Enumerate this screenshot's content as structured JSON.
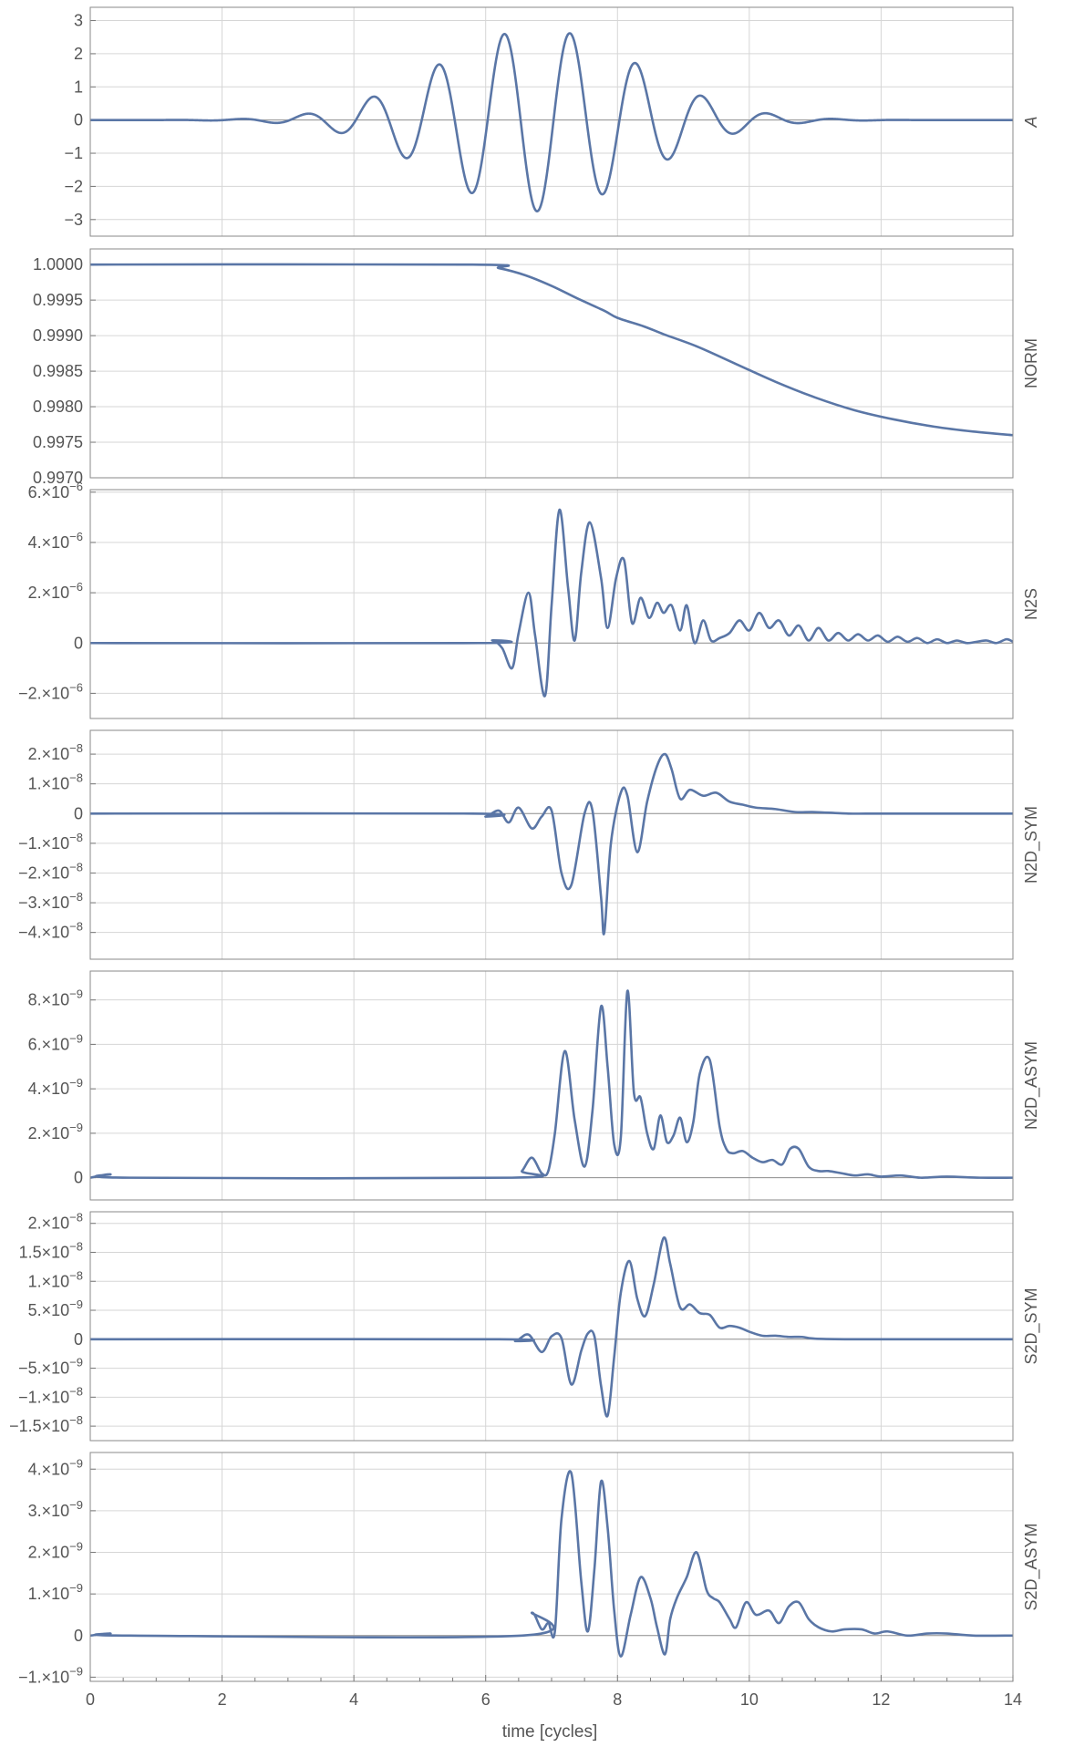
{
  "chart_data": [
    {
      "type": "line",
      "panel_label": "A",
      "x_range": [
        0,
        14
      ],
      "ylim": [
        -3.5,
        3.4
      ],
      "yticks": [
        {
          "v": 3,
          "m": "3",
          "e": ""
        },
        {
          "v": 2,
          "m": "2",
          "e": ""
        },
        {
          "v": 1,
          "m": "1",
          "e": ""
        },
        {
          "v": 0,
          "m": "0",
          "e": ""
        },
        {
          "v": -1,
          "m": "−1",
          "e": ""
        },
        {
          "v": -2,
          "m": "−2",
          "e": ""
        },
        {
          "v": -3,
          "m": "−3",
          "e": ""
        }
      ],
      "series": [
        {
          "x": [],
          "y": []
        }
      ]
    },
    {
      "type": "line",
      "panel_label": "NORM",
      "x_range": [
        0,
        14
      ],
      "ylim": [
        0.997,
        1.00022
      ],
      "yticks": [
        {
          "v": 1.0,
          "m": "1.0000",
          "e": ""
        },
        {
          "v": 0.9995,
          "m": "0.9995",
          "e": ""
        },
        {
          "v": 0.999,
          "m": "0.9990",
          "e": ""
        },
        {
          "v": 0.9985,
          "m": "0.9985",
          "e": ""
        },
        {
          "v": 0.998,
          "m": "0.9980",
          "e": ""
        },
        {
          "v": 0.9975,
          "m": "0.9975",
          "e": ""
        },
        {
          "v": 0.997,
          "m": "0.9970",
          "e": ""
        }
      ],
      "series": [
        {
          "x": [
            0,
            5.8,
            6.2,
            6.6,
            7.0,
            7.4,
            7.8,
            8.0,
            8.4,
            8.7,
            9.2,
            9.8,
            10.4,
            11.0,
            11.6,
            12.2,
            12.8,
            13.4,
            14.0
          ],
          "y": [
            1.0,
            1.0,
            0.99995,
            0.99985,
            0.9997,
            0.99952,
            0.99935,
            0.99925,
            0.99913,
            0.99902,
            0.99885,
            0.9986,
            0.99835,
            0.99813,
            0.99795,
            0.99782,
            0.99772,
            0.99765,
            0.9976
          ]
        }
      ]
    },
    {
      "type": "line",
      "panel_label": "N2S",
      "x_range": [
        0,
        14
      ],
      "ylim": [
        -3e-06,
        6.1e-06
      ],
      "yticks": [
        {
          "v": 6e-06,
          "m": "6.×10",
          "e": "−6"
        },
        {
          "v": 4e-06,
          "m": "4.×10",
          "e": "−6"
        },
        {
          "v": 2e-06,
          "m": "2.×10",
          "e": "−6"
        },
        {
          "v": 0,
          "m": "0",
          "e": ""
        },
        {
          "v": -2e-06,
          "m": "−2.×10",
          "e": "−6"
        }
      ],
      "series": [
        {
          "x": [
            0,
            5.9,
            6.1,
            6.25,
            6.4,
            6.5,
            6.65,
            6.75,
            6.9,
            7.0,
            7.12,
            7.25,
            7.35,
            7.45,
            7.58,
            7.75,
            7.85,
            7.98,
            8.1,
            8.22,
            8.35,
            8.48,
            8.6,
            8.7,
            8.82,
            8.95,
            9.05,
            9.17,
            9.3,
            9.42,
            9.55,
            9.7,
            9.85,
            10.0,
            10.15,
            10.3,
            10.45,
            10.6,
            10.75,
            10.9,
            11.05,
            11.2,
            11.35,
            11.5,
            11.65,
            11.8,
            11.95,
            12.1,
            12.25,
            12.4,
            12.55,
            12.7,
            12.85,
            13.0,
            13.15,
            13.3,
            13.45,
            13.6,
            13.75,
            13.9,
            14.0
          ],
          "y": [
            0,
            0,
            1e-07,
            -2e-07,
            -1e-06,
            4e-07,
            2e-06,
            3e-07,
            -2.1e-06,
            1.5e-06,
            5.3e-06,
            2.2e-06,
            1e-07,
            2.8e-06,
            4.8e-06,
            2.6e-06,
            6e-07,
            2.6e-06,
            3.3e-06,
            8e-07,
            1.8e-06,
            1e-06,
            1.6e-06,
            1.2e-06,
            1.5e-06,
            5e-07,
            1.5e-06,
            0.0,
            9e-07,
            1e-07,
            2e-07,
            4e-07,
            9e-07,
            5e-07,
            1.2e-06,
            6e-07,
            9e-07,
            3e-07,
            7e-07,
            1e-07,
            6e-07,
            1e-07,
            4e-07,
            1e-07,
            3.5e-07,
            1e-07,
            3e-07,
            5e-08,
            2.5e-07,
            5e-08,
            2e-07,
            0.0,
            1.5e-07,
            0.0,
            1e-07,
            0.0,
            5e-08,
            1e-07,
            0.0,
            1.5e-07,
            5e-08
          ]
        }
      ]
    },
    {
      "type": "line",
      "panel_label": "N2D_SYM",
      "x_range": [
        0,
        14
      ],
      "ylim": [
        -4.9e-08,
        2.8e-08
      ],
      "yticks": [
        {
          "v": 2e-08,
          "m": "2.×10",
          "e": "−8"
        },
        {
          "v": 1e-08,
          "m": "1.×10",
          "e": "−8"
        },
        {
          "v": 0,
          "m": "0",
          "e": ""
        },
        {
          "v": -1e-08,
          "m": "−1.×10",
          "e": "−8"
        },
        {
          "v": -2e-08,
          "m": "−2.×10",
          "e": "−8"
        },
        {
          "v": -3e-08,
          "m": "−3.×10",
          "e": "−8"
        },
        {
          "v": -4e-08,
          "m": "−4.×10",
          "e": "−8"
        }
      ],
      "series": [
        {
          "x": [
            0,
            5.8,
            6.0,
            6.2,
            6.35,
            6.5,
            6.7,
            6.85,
            7.0,
            7.15,
            7.3,
            7.5,
            7.62,
            7.75,
            7.8,
            7.9,
            8.05,
            8.15,
            8.3,
            8.45,
            8.6,
            8.72,
            8.82,
            8.95,
            9.1,
            9.3,
            9.5,
            9.7,
            9.9,
            10.1,
            10.4,
            10.7,
            11.0,
            11.5,
            12.0,
            13.0,
            14.0
          ],
          "y": [
            0,
            0,
            -1e-09,
            1e-09,
            -3e-09,
            2e-09,
            -5e-09,
            -1e-09,
            1e-09,
            -2e-08,
            -2.4e-08,
            0.0,
            1e-09,
            -2.8e-08,
            -4e-08,
            -1e-08,
            7e-09,
            6e-09,
            -1.3e-08,
            4e-09,
            1.6e-08,
            2e-08,
            1.5e-08,
            5e-09,
            8e-09,
            6e-09,
            7e-09,
            4e-09,
            3e-09,
            2e-09,
            1.5e-09,
            5e-10,
            5e-10,
            0.0,
            0.0,
            0.0,
            0.0
          ]
        }
      ]
    },
    {
      "type": "line",
      "panel_label": "N2D_ASYM",
      "x_range": [
        0,
        14
      ],
      "ylim": [
        -1e-09,
        9.3e-09
      ],
      "yticks": [
        {
          "v": 8e-09,
          "m": "8.×10",
          "e": "−9"
        },
        {
          "v": 6e-09,
          "m": "6.×10",
          "e": "−9"
        },
        {
          "v": 4e-09,
          "m": "4.×10",
          "e": "−9"
        },
        {
          "v": 2e-09,
          "m": "2.×10",
          "e": "−9"
        },
        {
          "v": 0,
          "m": "0",
          "e": ""
        }
      ],
      "series": [
        {
          "x": [
            0,
            0.3,
            0.6,
            6.4,
            6.55,
            6.7,
            6.85,
            6.95,
            7.05,
            7.2,
            7.35,
            7.5,
            7.62,
            7.75,
            7.85,
            7.95,
            8.05,
            8.15,
            8.25,
            8.35,
            8.45,
            8.55,
            8.65,
            8.75,
            8.85,
            8.95,
            9.05,
            9.15,
            9.25,
            9.4,
            9.55,
            9.65,
            9.75,
            9.9,
            10.05,
            10.2,
            10.35,
            10.5,
            10.62,
            10.75,
            10.9,
            11.05,
            11.2,
            11.4,
            11.6,
            11.8,
            12.0,
            12.3,
            12.6,
            13.0,
            13.5,
            14.0
          ],
          "y": [
            0,
            1.5e-10,
            0.0,
            0.0,
            3e-10,
            9e-10,
            2e-10,
            3e-10,
            2e-09,
            5.7e-09,
            2.6e-09,
            5e-10,
            3e-09,
            7.7e-09,
            5e-09,
            1.5e-09,
            1.8e-09,
            8.4e-09,
            3.8e-09,
            3.6e-09,
            2e-09,
            1.3e-09,
            2.8e-09,
            1.6e-09,
            1.9e-09,
            2.7e-09,
            1.6e-09,
            2.5e-09,
            4.7e-09,
            5.3e-09,
            2.3e-09,
            1.3e-09,
            1.1e-09,
            1.2e-09,
            9e-10,
            7e-10,
            8e-10,
            6e-10,
            1.3e-09,
            1.3e-09,
            5e-10,
            3e-10,
            3e-10,
            2e-10,
            1e-10,
            1.5e-10,
            5e-11,
            1e-10,
            0.0,
            5e-11,
            0.0,
            0.0
          ]
        }
      ]
    },
    {
      "type": "line",
      "panel_label": "S2D_SYM",
      "x_range": [
        0,
        14
      ],
      "ylim": [
        -1.75e-08,
        2.2e-08
      ],
      "yticks": [
        {
          "v": 2e-08,
          "m": "2.×10",
          "e": "−8"
        },
        {
          "v": 1.5e-08,
          "m": "1.5×10",
          "e": "−8"
        },
        {
          "v": 1e-08,
          "m": "1.×10",
          "e": "−8"
        },
        {
          "v": 5e-09,
          "m": "5.×10",
          "e": "−9"
        },
        {
          "v": 0,
          "m": "0",
          "e": ""
        },
        {
          "v": -5e-09,
          "m": "−5.×10",
          "e": "−9"
        },
        {
          "v": -1e-08,
          "m": "−1.×10",
          "e": "−8"
        },
        {
          "v": -1.5e-08,
          "m": "−1.5×10",
          "e": "−8"
        }
      ],
      "series": [
        {
          "x": [
            0,
            6.2,
            6.45,
            6.65,
            6.85,
            7.0,
            7.15,
            7.3,
            7.45,
            7.55,
            7.65,
            7.75,
            7.85,
            7.95,
            8.05,
            8.18,
            8.3,
            8.42,
            8.55,
            8.7,
            8.8,
            8.95,
            9.1,
            9.25,
            9.4,
            9.55,
            9.7,
            9.85,
            10.0,
            10.2,
            10.4,
            10.6,
            10.8,
            11.0,
            11.5,
            12.0,
            13.0,
            14.0
          ],
          "y": [
            0,
            0,
            -3e-10,
            8e-10,
            -2.2e-09,
            5e-10,
            2e-10,
            -7.8e-09,
            -2e-09,
            1e-09,
            5e-10,
            -8e-09,
            -1.32e-08,
            -3e-09,
            8e-09,
            1.35e-08,
            7e-09,
            4e-09,
            9.5e-09,
            1.75e-08,
            1.3e-08,
            5.5e-09,
            6e-09,
            4.5e-09,
            4.2e-09,
            2e-09,
            2.3e-09,
            2e-09,
            1.3e-09,
            6e-10,
            6e-10,
            4e-10,
            4e-10,
            1e-10,
            0.0,
            0.0,
            0.0,
            0.0
          ]
        }
      ]
    },
    {
      "type": "line",
      "panel_label": "S2D_ASYM",
      "x_range": [
        0,
        14
      ],
      "ylim": [
        -1.1e-09,
        4.4e-09
      ],
      "yticks": [
        {
          "v": 4e-09,
          "m": "4.×10",
          "e": "−9"
        },
        {
          "v": 3e-09,
          "m": "3.×10",
          "e": "−9"
        },
        {
          "v": 2e-09,
          "m": "2.×10",
          "e": "−9"
        },
        {
          "v": 1e-09,
          "m": "1.×10",
          "e": "−9"
        },
        {
          "v": 0,
          "m": "0",
          "e": ""
        },
        {
          "v": -1e-09,
          "m": "−1.×10",
          "e": "−9"
        }
      ],
      "series": [
        {
          "x": [
            0,
            0.3,
            0.6,
            6.55,
            6.7,
            6.85,
            6.95,
            7.05,
            7.15,
            7.3,
            7.45,
            7.55,
            7.65,
            7.75,
            7.85,
            7.95,
            8.05,
            8.2,
            8.35,
            8.5,
            8.6,
            8.72,
            8.8,
            8.9,
            9.05,
            9.2,
            9.35,
            9.45,
            9.55,
            9.7,
            9.8,
            9.95,
            10.1,
            10.3,
            10.45,
            10.6,
            10.75,
            10.9,
            11.05,
            11.25,
            11.45,
            11.7,
            11.9,
            12.1,
            12.4,
            12.7,
            13.0,
            13.4,
            14.0
          ],
          "y": [
            0,
            5e-11,
            0.0,
            0.0,
            5.5e-10,
            1.5e-10,
            3e-10,
            1e-10,
            2.8e-09,
            3.9e-09,
            1.3e-09,
            1e-10,
            1.6e-09,
            3.7e-09,
            2.6e-09,
            6e-10,
            -5e-10,
            5e-10,
            1.4e-09,
            9e-10,
            2e-10,
            -4.5e-10,
            4e-10,
            9e-10,
            1.4e-09,
            2e-09,
            1.1e-09,
            9e-10,
            8e-10,
            4e-10,
            2e-10,
            8e-10,
            5e-10,
            6e-10,
            3e-10,
            7e-10,
            8e-10,
            4e-10,
            2e-10,
            1e-10,
            1.5e-10,
            1.5e-10,
            5e-11,
            1e-10,
            0.0,
            5e-11,
            5e-11,
            0.0,
            0.0
          ]
        }
      ]
    }
  ],
  "x_ticks": [
    {
      "v": 0,
      "label": "0"
    },
    {
      "v": 2,
      "label": "2"
    },
    {
      "v": 4,
      "label": "4"
    },
    {
      "v": 6,
      "label": "6"
    },
    {
      "v": 8,
      "label": "8"
    },
    {
      "v": 10,
      "label": "10"
    },
    {
      "v": 12,
      "label": "12"
    },
    {
      "v": 14,
      "label": "14"
    }
  ],
  "xlabel": "time [cycles]",
  "line_color": "#5a76a6",
  "grid": true
}
